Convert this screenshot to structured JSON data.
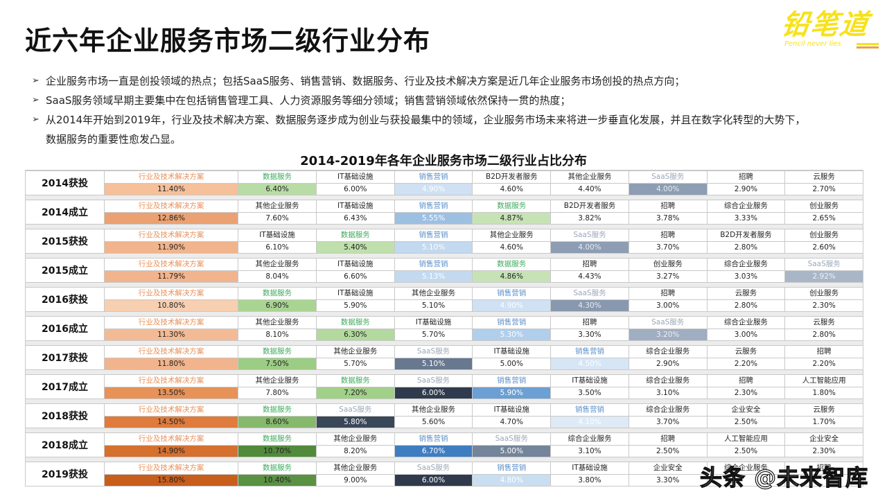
{
  "page": {
    "title": "近六年企业服务市场二级行业分布",
    "logo": {
      "cn": "铅笔道",
      "en": "Pencil never lies"
    },
    "bullets": [
      "企业服务市场一直是创投领域的热点；包括SaaS服务、销售营销、数据服务、行业及技术解决方案是近几年企业服务市场创投的热点方向；",
      "SaaS服务领域早期主要集中在包括销售管理工具、人力资源服务等细分领域；销售营销领域依然保持一贯的热度；",
      "从2014年开始到2019年，行业及技术解决方案、数据服务逐步成为创业与获投最集中的领域，企业服务市场未来将进一步垂直化发展，并且在数字化转型的大势下，"
    ],
    "bullet_continuation": "数据服务的重要性愈发凸显。",
    "bullet_marker": "➢",
    "watermark": "头条 @未来智库"
  },
  "colors": {
    "行业及技术解决方案": {
      "text": "#e8915a"
    },
    "数据服务": {
      "text": "#3daa5c"
    },
    "销售营销": {
      "text": "#5b8fc9"
    },
    "SaaS服务": {
      "text": "#9aa7b8"
    },
    "default": {
      "text": "#222222"
    }
  },
  "chart_data": {
    "type": "table",
    "title": "2014-2019年各年企业服务市场二级行业占比分布",
    "unit": "%",
    "rows": [
      {
        "label": "2014获投",
        "items": [
          {
            "name": "行业及技术解决方案",
            "value": "11.40%",
            "bg": "#f5c09a",
            "fg": "#222"
          },
          {
            "name": "数据服务",
            "value": "6.40%",
            "bg": "#b9dca6",
            "fg": "#222"
          },
          {
            "name": "IT基础设施",
            "value": "6.00%",
            "bg": "#ffffff",
            "fg": "#222"
          },
          {
            "name": "销售营销",
            "value": "4.90%",
            "bg": "#cfe1f3",
            "fg": "#ffffff"
          },
          {
            "name": "B2D开发者服务",
            "value": "4.60%",
            "bg": "#ffffff",
            "fg": "#222"
          },
          {
            "name": "其他企业服务",
            "value": "4.40%",
            "bg": "#ffffff",
            "fg": "#222"
          },
          {
            "name": "SaaS服务",
            "value": "4.00%",
            "bg": "#8d9db3",
            "fg": "#e8ecf2"
          },
          {
            "name": "招聘",
            "value": "2.90%",
            "bg": "#ffffff",
            "fg": "#222"
          },
          {
            "name": "云服务",
            "value": "2.70%",
            "bg": "#ffffff",
            "fg": "#222"
          }
        ]
      },
      {
        "label": "2014成立",
        "items": [
          {
            "name": "行业及技术解决方案",
            "value": "12.86%",
            "bg": "#eba172",
            "fg": "#222"
          },
          {
            "name": "其他企业服务",
            "value": "7.60%",
            "bg": "#ffffff",
            "fg": "#222"
          },
          {
            "name": "IT基础设施",
            "value": "6.43%",
            "bg": "#ffffff",
            "fg": "#222"
          },
          {
            "name": "销售营销",
            "value": "5.55%",
            "bg": "#9dbfe2",
            "fg": "#ffffff"
          },
          {
            "name": "数据服务",
            "value": "4.87%",
            "bg": "#c7e3b6",
            "fg": "#222"
          },
          {
            "name": "B2D开发者服务",
            "value": "3.82%",
            "bg": "#ffffff",
            "fg": "#222"
          },
          {
            "name": "招聘",
            "value": "3.78%",
            "bg": "#ffffff",
            "fg": "#222"
          },
          {
            "name": "综合企业服务",
            "value": "3.33%",
            "bg": "#ffffff",
            "fg": "#222"
          },
          {
            "name": "创业服务",
            "value": "2.65%",
            "bg": "#ffffff",
            "fg": "#222"
          }
        ]
      },
      {
        "label": "2015获投",
        "items": [
          {
            "name": "行业及技术解决方案",
            "value": "11.90%",
            "bg": "#f1b48c",
            "fg": "#222"
          },
          {
            "name": "IT基础设施",
            "value": "6.10%",
            "bg": "#ffffff",
            "fg": "#222"
          },
          {
            "name": "数据服务",
            "value": "5.40%",
            "bg": "#bfdfac",
            "fg": "#222"
          },
          {
            "name": "销售营销",
            "value": "5.10%",
            "bg": "#c2d9f0",
            "fg": "#ffffff"
          },
          {
            "name": "其他企业服务",
            "value": "4.60%",
            "bg": "#ffffff",
            "fg": "#222"
          },
          {
            "name": "SaaS服务",
            "value": "4.00%",
            "bg": "#8d9db3",
            "fg": "#e8ecf2"
          },
          {
            "name": "招聘",
            "value": "3.70%",
            "bg": "#ffffff",
            "fg": "#222"
          },
          {
            "name": "B2D开发者服务",
            "value": "2.80%",
            "bg": "#ffffff",
            "fg": "#222"
          },
          {
            "name": "创业服务",
            "value": "2.60%",
            "bg": "#ffffff",
            "fg": "#222"
          }
        ]
      },
      {
        "label": "2015成立",
        "items": [
          {
            "name": "行业及技术解决方案",
            "value": "11.79%",
            "bg": "#f1b48c",
            "fg": "#222"
          },
          {
            "name": "其他企业服务",
            "value": "8.04%",
            "bg": "#ffffff",
            "fg": "#222"
          },
          {
            "name": "IT基础设施",
            "value": "6.60%",
            "bg": "#ffffff",
            "fg": "#222"
          },
          {
            "name": "销售营销",
            "value": "5.13%",
            "bg": "#c2d9f0",
            "fg": "#ffffff"
          },
          {
            "name": "数据服务",
            "value": "4.86%",
            "bg": "#c7e3b6",
            "fg": "#222"
          },
          {
            "name": "招聘",
            "value": "4.43%",
            "bg": "#ffffff",
            "fg": "#222"
          },
          {
            "name": "创业服务",
            "value": "3.27%",
            "bg": "#ffffff",
            "fg": "#222"
          },
          {
            "name": "综合企业服务",
            "value": "3.03%",
            "bg": "#ffffff",
            "fg": "#222"
          },
          {
            "name": "SaaS服务",
            "value": "2.92%",
            "bg": "#a9b6c8",
            "fg": "#eef1f5"
          }
        ]
      },
      {
        "label": "2016获投",
        "items": [
          {
            "name": "行业及技术解决方案",
            "value": "10.80%",
            "bg": "#f7cfb1",
            "fg": "#222"
          },
          {
            "name": "数据服务",
            "value": "6.90%",
            "bg": "#a9d492",
            "fg": "#222"
          },
          {
            "name": "IT基础设施",
            "value": "5.90%",
            "bg": "#ffffff",
            "fg": "#222"
          },
          {
            "name": "其他企业服务",
            "value": "5.10%",
            "bg": "#ffffff",
            "fg": "#222"
          },
          {
            "name": "销售营销",
            "value": "4.90%",
            "bg": "#cfe1f3",
            "fg": "#ffffff"
          },
          {
            "name": "SaaS服务",
            "value": "4.30%",
            "bg": "#8898ae",
            "fg": "#e8ecf2"
          },
          {
            "name": "招聘",
            "value": "3.00%",
            "bg": "#ffffff",
            "fg": "#222"
          },
          {
            "name": "云服务",
            "value": "2.80%",
            "bg": "#ffffff",
            "fg": "#222"
          },
          {
            "name": "创业服务",
            "value": "2.30%",
            "bg": "#ffffff",
            "fg": "#222"
          }
        ]
      },
      {
        "label": "2016成立",
        "items": [
          {
            "name": "行业及技术解决方案",
            "value": "11.30%",
            "bg": "#f3bb95",
            "fg": "#222"
          },
          {
            "name": "其他企业服务",
            "value": "8.10%",
            "bg": "#ffffff",
            "fg": "#222"
          },
          {
            "name": "数据服务",
            "value": "6.30%",
            "bg": "#b3d99e",
            "fg": "#222"
          },
          {
            "name": "IT基础设施",
            "value": "5.70%",
            "bg": "#ffffff",
            "fg": "#222"
          },
          {
            "name": "销售营销",
            "value": "5.30%",
            "bg": "#b1cfec",
            "fg": "#ffffff"
          },
          {
            "name": "招聘",
            "value": "3.30%",
            "bg": "#ffffff",
            "fg": "#222"
          },
          {
            "name": "SaaS服务",
            "value": "3.20%",
            "bg": "#a0aec2",
            "fg": "#eef1f5"
          },
          {
            "name": "综合企业服务",
            "value": "3.00%",
            "bg": "#ffffff",
            "fg": "#222"
          },
          {
            "name": "云服务",
            "value": "2.80%",
            "bg": "#ffffff",
            "fg": "#222"
          }
        ]
      },
      {
        "label": "2017获投",
        "items": [
          {
            "name": "行业及技术解决方案",
            "value": "11.80%",
            "bg": "#f1b48c",
            "fg": "#222"
          },
          {
            "name": "数据服务",
            "value": "7.50%",
            "bg": "#9ccd84",
            "fg": "#222"
          },
          {
            "name": "其他企业服务",
            "value": "5.70%",
            "bg": "#ffffff",
            "fg": "#222"
          },
          {
            "name": "SaaS服务",
            "value": "5.10%",
            "bg": "#67788f",
            "fg": "#ffffff"
          },
          {
            "name": "IT基础设施",
            "value": "5.00%",
            "bg": "#ffffff",
            "fg": "#222"
          },
          {
            "name": "销售营销",
            "value": "4.50%",
            "bg": "#d6e6f5",
            "fg": "#ffffff"
          },
          {
            "name": "综合企业服务",
            "value": "2.90%",
            "bg": "#ffffff",
            "fg": "#222"
          },
          {
            "name": "云服务",
            "value": "2.20%",
            "bg": "#ffffff",
            "fg": "#222"
          },
          {
            "name": "招聘",
            "value": "2.20%",
            "bg": "#ffffff",
            "fg": "#222"
          }
        ]
      },
      {
        "label": "2017成立",
        "items": [
          {
            "name": "行业及技术解决方案",
            "value": "13.50%",
            "bg": "#e69258",
            "fg": "#222"
          },
          {
            "name": "其他企业服务",
            "value": "7.80%",
            "bg": "#ffffff",
            "fg": "#222"
          },
          {
            "name": "数据服务",
            "value": "7.20%",
            "bg": "#a1d089",
            "fg": "#222"
          },
          {
            "name": "SaaS服务",
            "value": "6.00%",
            "bg": "#2f3b4d",
            "fg": "#ffffff"
          },
          {
            "name": "销售营销",
            "value": "5.90%",
            "bg": "#6c9fd3",
            "fg": "#ffffff"
          },
          {
            "name": "IT基础设施",
            "value": "3.50%",
            "bg": "#ffffff",
            "fg": "#222"
          },
          {
            "name": "综合企业服务",
            "value": "3.10%",
            "bg": "#ffffff",
            "fg": "#222"
          },
          {
            "name": "招聘",
            "value": "2.30%",
            "bg": "#ffffff",
            "fg": "#222"
          },
          {
            "name": "人工智能应用",
            "value": "1.80%",
            "bg": "#ffffff",
            "fg": "#222"
          }
        ]
      },
      {
        "label": "2018获投",
        "items": [
          {
            "name": "行业及技术解决方案",
            "value": "14.50%",
            "bg": "#df7b3c",
            "fg": "#222"
          },
          {
            "name": "数据服务",
            "value": "8.60%",
            "bg": "#86b96c",
            "fg": "#222"
          },
          {
            "name": "SaaS服务",
            "value": "5.80%",
            "bg": "#3a4759",
            "fg": "#ffffff"
          },
          {
            "name": "其他企业服务",
            "value": "5.60%",
            "bg": "#ffffff",
            "fg": "#222"
          },
          {
            "name": "IT基础设施",
            "value": "4.70%",
            "bg": "#ffffff",
            "fg": "#222"
          },
          {
            "name": "销售营销",
            "value": "4.10%",
            "bg": "#deeaf6",
            "fg": "#ffffff"
          },
          {
            "name": "综合企业服务",
            "value": "3.70%",
            "bg": "#ffffff",
            "fg": "#222"
          },
          {
            "name": "企业安全",
            "value": "2.50%",
            "bg": "#ffffff",
            "fg": "#222"
          },
          {
            "name": "云服务",
            "value": "1.70%",
            "bg": "#ffffff",
            "fg": "#222"
          }
        ]
      },
      {
        "label": "2018成立",
        "items": [
          {
            "name": "行业及技术解决方案",
            "value": "14.90%",
            "bg": "#d5702f",
            "fg": "#222"
          },
          {
            "name": "数据服务",
            "value": "10.70%",
            "bg": "#528a3c",
            "fg": "#222"
          },
          {
            "name": "其他企业服务",
            "value": "8.20%",
            "bg": "#ffffff",
            "fg": "#222"
          },
          {
            "name": "销售营销",
            "value": "6.70%",
            "bg": "#3f7dc1",
            "fg": "#ffffff"
          },
          {
            "name": "SaaS服务",
            "value": "5.00%",
            "bg": "#74849a",
            "fg": "#ffffff"
          },
          {
            "name": "综合企业服务",
            "value": "3.10%",
            "bg": "#ffffff",
            "fg": "#222"
          },
          {
            "name": "招聘",
            "value": "2.50%",
            "bg": "#ffffff",
            "fg": "#222"
          },
          {
            "name": "人工智能应用",
            "value": "2.50%",
            "bg": "#ffffff",
            "fg": "#222"
          },
          {
            "name": "企业安全",
            "value": "2.30%",
            "bg": "#ffffff",
            "fg": "#222"
          }
        ]
      },
      {
        "label": "2019获投",
        "items": [
          {
            "name": "行业及技术解决方案",
            "value": "15.80%",
            "bg": "#c85e1c",
            "fg": "#222"
          },
          {
            "name": "数据服务",
            "value": "10.40%",
            "bg": "#5a9142",
            "fg": "#222"
          },
          {
            "name": "其他企业服务",
            "value": "9.00%",
            "bg": "#ffffff",
            "fg": "#222"
          },
          {
            "name": "SaaS服务",
            "value": "6.00%",
            "bg": "#2f3b4d",
            "fg": "#ffffff"
          },
          {
            "name": "销售营销",
            "value": "4.80%",
            "bg": "#cadef2",
            "fg": "#ffffff"
          },
          {
            "name": "IT基础设施",
            "value": "3.80%",
            "bg": "#ffffff",
            "fg": "#222"
          },
          {
            "name": "企业安全",
            "value": "3.30%",
            "bg": "#ffffff",
            "fg": "#222"
          },
          {
            "name": "综合企业服务",
            "value": "",
            "bg": "#ffffff",
            "fg": "#222"
          },
          {
            "name": "招聘",
            "value": "",
            "bg": "#ffffff",
            "fg": "#222"
          }
        ]
      }
    ]
  }
}
